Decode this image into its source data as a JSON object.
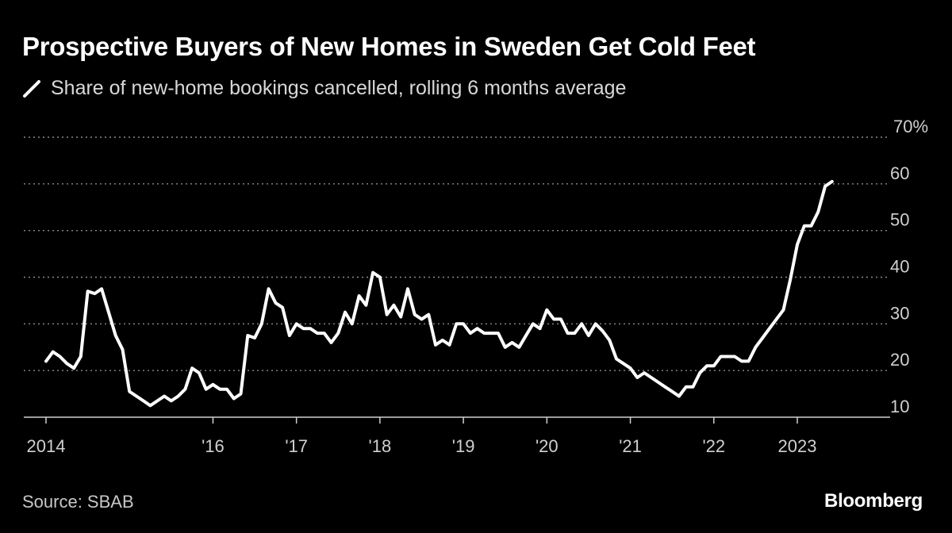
{
  "header": {
    "title": "Prospective Buyers of New Homes in Sweden Get Cold Feet"
  },
  "footer": {
    "source": "Source: SBAB",
    "brand": "Bloomberg"
  },
  "colors": {
    "background": "#000000",
    "line": "#ffffff",
    "grid": "#8a8a8a"
  },
  "chart_data": {
    "type": "line",
    "title": "Prospective Buyers of New Homes in Sweden Get Cold Feet",
    "series": [
      {
        "name": "Share of new-home bookings cancelled, rolling 6 months average",
        "x": [
          "2014-01",
          "2014-02",
          "2014-03",
          "2014-04",
          "2014-05",
          "2014-06",
          "2014-07",
          "2014-08",
          "2014-09",
          "2014-10",
          "2014-11",
          "2014-12",
          "2015-01",
          "2015-02",
          "2015-03",
          "2015-04",
          "2015-05",
          "2015-06",
          "2015-07",
          "2015-08",
          "2015-09",
          "2015-10",
          "2015-11",
          "2015-12",
          "2016-01",
          "2016-02",
          "2016-03",
          "2016-04",
          "2016-05",
          "2016-06",
          "2016-07",
          "2016-08",
          "2016-09",
          "2016-10",
          "2016-11",
          "2016-12",
          "2017-01",
          "2017-02",
          "2017-03",
          "2017-04",
          "2017-05",
          "2017-06",
          "2017-07",
          "2017-08",
          "2017-09",
          "2017-10",
          "2017-11",
          "2017-12",
          "2018-01",
          "2018-02",
          "2018-03",
          "2018-04",
          "2018-05",
          "2018-06",
          "2018-07",
          "2018-08",
          "2018-09",
          "2018-10",
          "2018-11",
          "2018-12",
          "2019-01",
          "2019-02",
          "2019-03",
          "2019-04",
          "2019-05",
          "2019-06",
          "2019-07",
          "2019-08",
          "2019-09",
          "2019-10",
          "2019-11",
          "2019-12",
          "2020-01",
          "2020-02",
          "2020-03",
          "2020-04",
          "2020-05",
          "2020-06",
          "2020-07",
          "2020-08",
          "2020-09",
          "2020-10",
          "2020-11",
          "2020-12",
          "2021-01",
          "2021-02",
          "2021-03",
          "2021-04",
          "2021-05",
          "2021-06",
          "2021-07",
          "2021-08",
          "2021-09",
          "2021-10",
          "2021-11",
          "2021-12",
          "2022-01",
          "2022-02",
          "2022-03",
          "2022-04",
          "2022-05",
          "2022-06",
          "2022-07",
          "2022-08",
          "2022-09",
          "2022-10",
          "2022-11",
          "2022-12",
          "2023-01",
          "2023-02",
          "2023-03",
          "2023-04",
          "2023-05",
          "2023-06"
        ],
        "values": [
          22,
          24,
          23,
          21.5,
          20.5,
          23,
          37,
          36.5,
          37.5,
          32.5,
          27.5,
          24.5,
          15.5,
          14.5,
          13.5,
          12.5,
          13.5,
          14.5,
          13.5,
          14.5,
          16,
          20.5,
          19.5,
          16,
          17,
          16,
          16,
          14,
          15,
          27.5,
          27,
          30,
          37.5,
          34.5,
          33.5,
          27.5,
          30,
          29,
          29,
          28,
          28,
          26,
          28,
          32.5,
          30,
          36,
          34,
          41,
          40,
          32,
          34,
          31.5,
          37.5,
          32,
          31,
          32,
          25.5,
          26.5,
          25.5,
          30,
          30,
          28,
          29,
          28,
          28,
          28,
          25,
          26,
          25,
          27.5,
          30,
          29,
          33,
          31,
          31,
          28,
          28,
          30,
          27.5,
          30,
          28.5,
          26.5,
          22.5,
          21.5,
          20.5,
          18.5,
          19.5,
          18.5,
          17.5,
          16.5,
          15.5,
          14.5,
          16.5,
          16.5,
          19.5,
          21,
          21,
          23,
          23,
          23,
          22,
          22,
          25,
          27,
          29,
          31,
          33,
          39.5,
          47,
          51,
          51,
          54,
          59.5,
          60.5
        ]
      }
    ],
    "x_ticks": [
      "2014",
      "'16",
      "'17",
      "'18",
      "'19",
      "'20",
      "'21",
      "'22",
      "2023"
    ],
    "y_ticks": [
      "10",
      "20",
      "30",
      "40",
      "50",
      "60",
      "70%"
    ],
    "ylim": [
      10,
      70
    ],
    "xlim": [
      "2014-01",
      "2024-06"
    ],
    "grid": "horizontal dotted",
    "y_axis_position": "right",
    "legend_position": "top-left"
  }
}
